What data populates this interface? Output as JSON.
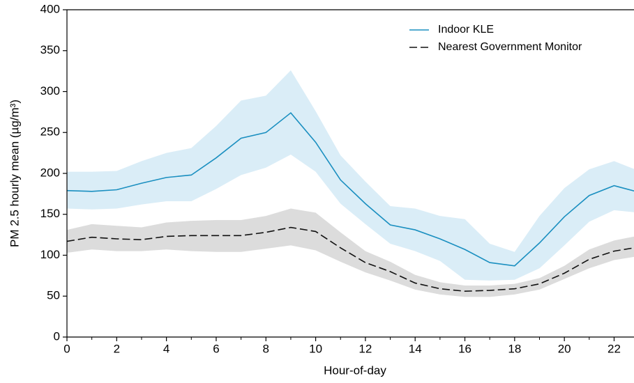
{
  "chart_data": {
    "type": "line",
    "xlabel": "Hour-of-day",
    "ylabel": "PM 2.5 hourly mean (µg/m³)",
    "x": [
      0,
      1,
      2,
      3,
      4,
      5,
      6,
      7,
      8,
      9,
      10,
      11,
      12,
      13,
      14,
      15,
      16,
      17,
      18,
      19,
      20,
      21,
      22,
      23
    ],
    "series": [
      {
        "name": "Indoor KLE",
        "color": "#1a8fc0",
        "band_color": "#daedf7",
        "dash": false,
        "values": [
          179,
          178,
          180,
          188,
          195,
          198,
          219,
          243,
          250,
          274,
          238,
          192,
          163,
          137,
          131,
          120,
          107,
          91,
          87,
          115,
          147,
          173,
          185,
          177
        ],
        "upper": [
          202,
          202,
          203,
          215,
          225,
          231,
          258,
          289,
          295,
          326,
          276,
          222,
          190,
          160,
          157,
          148,
          144,
          114,
          104,
          148,
          182,
          205,
          215,
          203
        ],
        "lower": [
          157,
          156,
          157,
          162,
          166,
          166,
          181,
          198,
          207,
          223,
          202,
          163,
          138,
          114,
          105,
          93,
          70,
          69,
          70,
          84,
          112,
          141,
          155,
          152
        ]
      },
      {
        "name": "Nearest Government Monitor",
        "color": "#111111",
        "band_color": "#dcdcdc",
        "dash": true,
        "values": [
          117,
          122,
          120,
          119,
          123,
          124,
          124,
          124,
          128,
          134,
          129,
          109,
          91,
          80,
          66,
          59,
          56,
          57,
          59,
          65,
          78,
          95,
          105,
          110
        ],
        "upper": [
          131,
          138,
          136,
          134,
          140,
          142,
          143,
          143,
          148,
          157,
          152,
          128,
          105,
          92,
          76,
          67,
          63,
          63,
          65,
          72,
          87,
          107,
          118,
          124
        ],
        "lower": [
          103,
          107,
          105,
          105,
          107,
          105,
          104,
          104,
          108,
          112,
          106,
          92,
          79,
          69,
          58,
          52,
          49,
          49,
          52,
          58,
          71,
          84,
          94,
          99
        ]
      }
    ],
    "xlim": [
      0,
      22.8
    ],
    "ylim": [
      0,
      400
    ],
    "xticks": [
      0,
      2,
      4,
      6,
      8,
      10,
      12,
      14,
      16,
      18,
      20,
      22
    ],
    "xminor_ticks": [
      1,
      3,
      5,
      7,
      9,
      11,
      13,
      15,
      17,
      19,
      21
    ],
    "yticks": [
      0,
      50,
      100,
      150,
      200,
      250,
      300,
      350,
      400
    ],
    "legend": "upper-right"
  }
}
